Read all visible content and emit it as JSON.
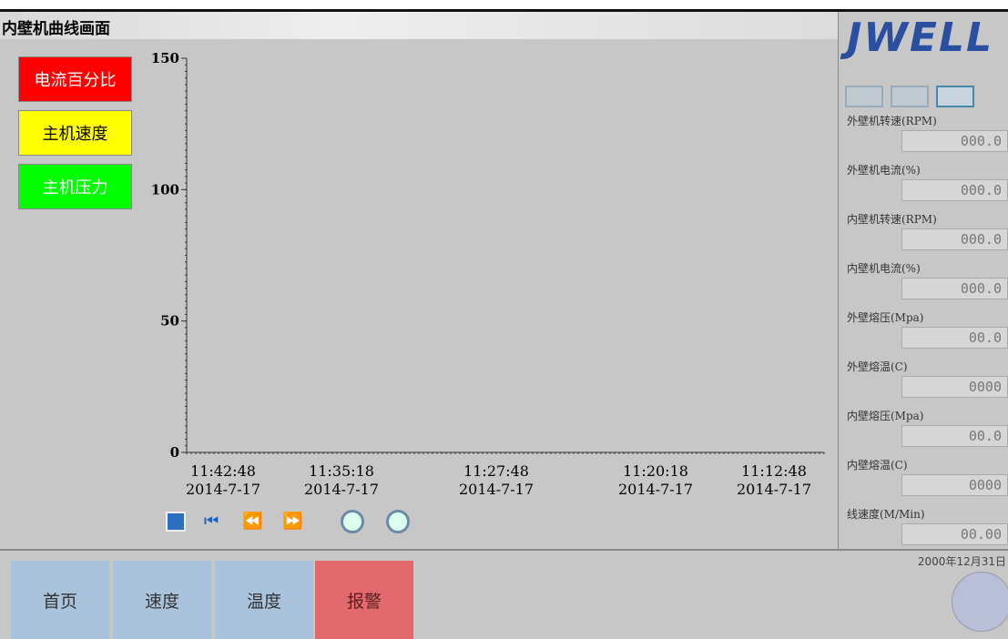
{
  "header": {
    "title": "内壁机曲线画面"
  },
  "legend": [
    {
      "label": "电流百分比",
      "color": "#ff0000",
      "text_color": "#ffffff"
    },
    {
      "label": "主机速度",
      "color": "#ffff00",
      "text_color": "#000000"
    },
    {
      "label": "主机压力",
      "color": "#00ff00",
      "text_color": "#ffffff"
    }
  ],
  "trend": {
    "ylim": [
      0,
      150
    ],
    "yticks": [
      0,
      50,
      100,
      150
    ],
    "x_labels": [
      {
        "time": "11:42:48",
        "date": "2014-7-17"
      },
      {
        "time": "11:35:18",
        "date": "2014-7-17"
      },
      {
        "time": "11:27:48",
        "date": "2014-7-17"
      },
      {
        "time": "11:20:18",
        "date": "2014-7-17"
      },
      {
        "time": "11:12:48",
        "date": "2014-7-17"
      }
    ]
  },
  "logo": "JWELL",
  "readouts": [
    {
      "label": "外壁机转速(RPM)",
      "value": "000.0"
    },
    {
      "label": "外壁机电流(%)",
      "value": "000.0"
    },
    {
      "label": "内壁机转速(RPM)",
      "value": "000.0"
    },
    {
      "label": "内壁机电流(%)",
      "value": "000.0"
    },
    {
      "label": "外壁熔压(Mpa)",
      "value": "00.0"
    },
    {
      "label": "外壁熔温(C)",
      "value": "0000"
    },
    {
      "label": "内壁熔压(Mpa)",
      "value": "00.0"
    },
    {
      "label": "内壁熔温(C)",
      "value": "0000"
    },
    {
      "label": "线速度(M/Min)",
      "value": "00.00"
    }
  ],
  "date": "2000年12月31日",
  "tabs": [
    "首页",
    "速度",
    "温度",
    "报警"
  ]
}
